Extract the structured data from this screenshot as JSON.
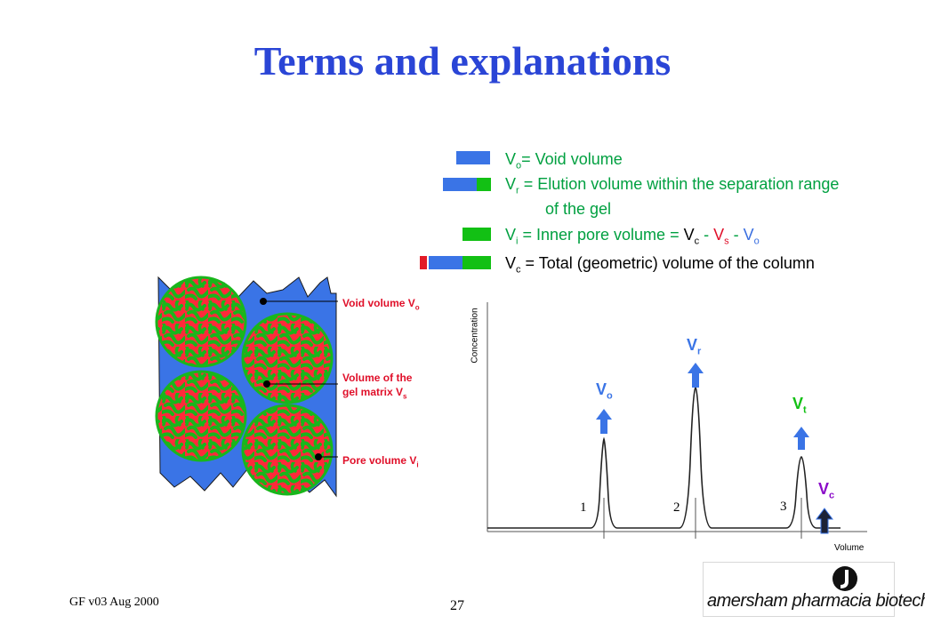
{
  "title": "Terms and explanations",
  "legend": {
    "void": {
      "sym": "V",
      "sub": "o",
      "text": "= Void volume"
    },
    "elution": {
      "sym": "V",
      "sub": "r",
      "text": " = Elution volume within the separation range",
      "text2": "of the gel"
    },
    "inner": {
      "sym": "V",
      "sub": "i",
      "text": " = Inner pore volume = ",
      "t1": "V",
      "s1": "c",
      "op1": " - ",
      "t2": "V",
      "s2": "s",
      "op2": " - ",
      "t3": "V",
      "s3": "o"
    },
    "total": {
      "sym": "V",
      "sub": "c",
      "text": " = Total (geometric) volume of the column"
    }
  },
  "column_labels": {
    "void": {
      "text": "Void volume V",
      "sub": "o"
    },
    "matrix": {
      "line1": "Volume of the",
      "line2": "gel matrix V",
      "sub": "s"
    },
    "pore": {
      "text": "Pore volume V",
      "sub": "i"
    }
  },
  "chromatogram": {
    "ylabel": "Concentration",
    "xlabel": "Volume",
    "peaks": [
      {
        "sym": "V",
        "sub": "o",
        "num": "1"
      },
      {
        "sym": "V",
        "sub": "r",
        "num": "2"
      },
      {
        "sym": "V",
        "sub": "t",
        "num": "3"
      }
    ],
    "end_label": {
      "sym": "V",
      "sub": "c"
    }
  },
  "colors": {
    "title": "#2a45d6",
    "green_text": "#00a040",
    "blue": "#3a74e6",
    "green": "#12c014",
    "red": "#e21b27",
    "purple": "#8a0ac8"
  },
  "footer": {
    "left": "GF v03 Aug 2000",
    "page": "27",
    "logo": "amersham pharmacia biotech"
  }
}
